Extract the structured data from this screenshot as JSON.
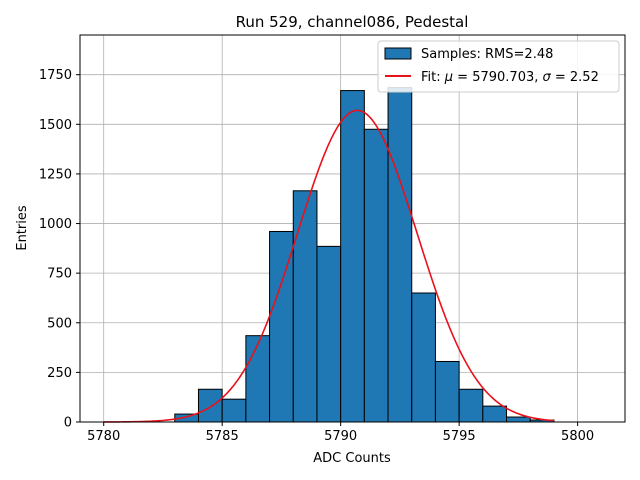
{
  "chart_data": {
    "type": "bar",
    "title": "Run 529, channel086, Pedestal",
    "xlabel": "ADC Counts",
    "ylabel": "Entries",
    "xlim": [
      5779,
      5802
    ],
    "ylim": [
      0,
      1950
    ],
    "grid": true,
    "xticks": [
      5780,
      5785,
      5790,
      5795,
      5800
    ],
    "yticks": [
      0,
      250,
      500,
      750,
      1000,
      1250,
      1500,
      1750
    ],
    "histogram": {
      "name": "Samples: RMS=2.48",
      "color": "#1f77b4",
      "bins": [
        {
          "x0": 5783,
          "x1": 5784,
          "value": 40
        },
        {
          "x0": 5784,
          "x1": 5785,
          "value": 165
        },
        {
          "x0": 5785,
          "x1": 5786,
          "value": 115
        },
        {
          "x0": 5786,
          "x1": 5787,
          "value": 435
        },
        {
          "x0": 5787,
          "x1": 5788,
          "value": 960
        },
        {
          "x0": 5788,
          "x1": 5789,
          "value": 1165
        },
        {
          "x0": 5789,
          "x1": 5790,
          "value": 885
        },
        {
          "x0": 5790,
          "x1": 5791,
          "value": 1670
        },
        {
          "x0": 5791,
          "x1": 5792,
          "value": 1475
        },
        {
          "x0": 5792,
          "x1": 5793,
          "value": 1685
        },
        {
          "x0": 5793,
          "x1": 5794,
          "value": 650
        },
        {
          "x0": 5794,
          "x1": 5795,
          "value": 305
        },
        {
          "x0": 5795,
          "x1": 5796,
          "value": 165
        },
        {
          "x0": 5796,
          "x1": 5797,
          "value": 80
        },
        {
          "x0": 5797,
          "x1": 5798,
          "value": 25
        },
        {
          "x0": 5798,
          "x1": 5799,
          "value": 10
        }
      ]
    },
    "fit": {
      "name": "Fit: μ = 5790.703, σ = 2.52",
      "label_prefix": "Fit: ",
      "mu_symbol": "μ",
      "mu_text": " = 5790.703, ",
      "sigma_symbol": "σ",
      "sigma_text": " = 2.52",
      "color": "#e8121b",
      "mu": 5790.703,
      "sigma": 2.52,
      "amplitude": 1570,
      "x_range": [
        5780,
        5799
      ]
    },
    "legend_position": "top-right"
  }
}
